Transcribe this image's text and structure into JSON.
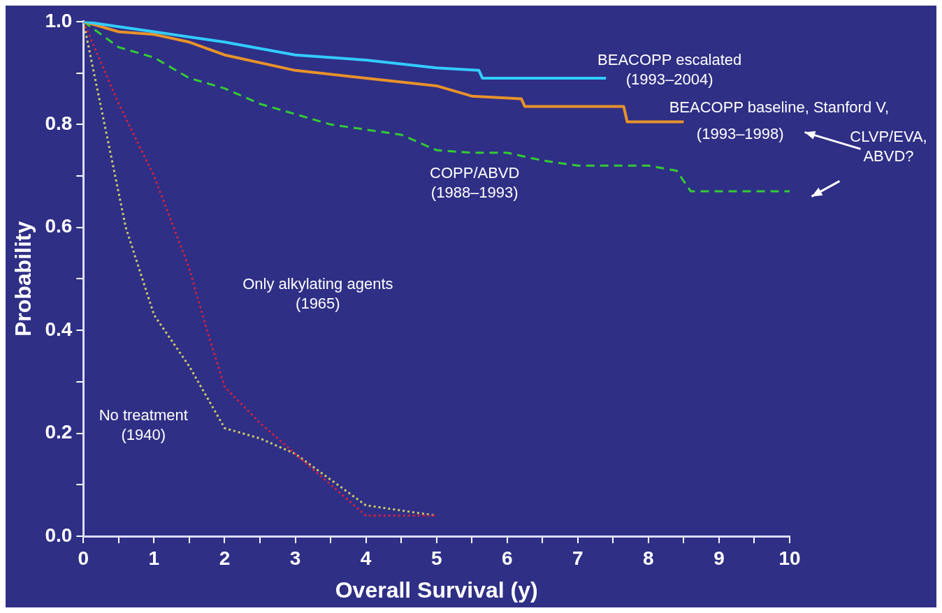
{
  "chart_data": {
    "type": "line",
    "xlabel": "Overall Survival (y)",
    "ylabel": "Probability",
    "xlim": [
      0,
      10
    ],
    "ylim": [
      0,
      1
    ],
    "xticks": [
      0,
      {
        "value": 0.5,
        "label": null
      },
      1,
      {
        "value": 1.5,
        "label": null
      },
      2,
      {
        "value": 2.5,
        "label": null
      },
      3,
      {
        "value": 3.5,
        "label": null
      },
      4,
      {
        "value": 4.5,
        "label": null
      },
      5,
      {
        "value": 5.5,
        "label": null
      },
      6,
      {
        "value": 6.5,
        "label": null
      },
      7,
      {
        "value": 7.5,
        "label": null
      },
      8,
      {
        "value": 8.5,
        "label": null
      },
      9,
      {
        "value": 9.5,
        "label": null
      },
      10
    ],
    "yticks": [
      {
        "value": 0,
        "label": "0.0"
      },
      {
        "value": 0.1,
        "label": null
      },
      {
        "value": 0.2,
        "label": "0.2"
      },
      {
        "value": 0.3,
        "label": null
      },
      {
        "value": 0.4,
        "label": "0.4"
      },
      {
        "value": 0.5,
        "label": null
      },
      {
        "value": 0.6,
        "label": "0.6"
      },
      {
        "value": 0.7,
        "label": null
      },
      {
        "value": 0.8,
        "label": "0.8"
      },
      {
        "value": 0.9,
        "label": null
      },
      {
        "value": 1,
        "label": "1.0"
      }
    ],
    "legend": false,
    "marker": "none",
    "series": [
      {
        "color": "#33ccff",
        "line_style": "solid",
        "x": [
          0,
          0.5,
          1,
          2,
          3,
          4,
          5,
          5.6,
          5.65,
          7.4
        ],
        "values": [
          1,
          0.99,
          0.98,
          0.96,
          0.935,
          0.925,
          0.91,
          0.905,
          0.89,
          0.89
        ]
      },
      {
        "color": "#e8922a",
        "line_style": "solid",
        "x": [
          0,
          0.5,
          1,
          1.5,
          2,
          3,
          4,
          5,
          5.5,
          6.2,
          6.25,
          7.65,
          7.7,
          8.5
        ],
        "values": [
          1,
          0.98,
          0.975,
          0.96,
          0.935,
          0.905,
          0.89,
          0.875,
          0.855,
          0.85,
          0.835,
          0.835,
          0.805,
          0.805
        ]
      },
      {
        "color": "#33cc33",
        "line_style": "dashed",
        "x": [
          0,
          0.5,
          1,
          1.5,
          2,
          2.5,
          3,
          3.5,
          4,
          4.5,
          5,
          5.5,
          6,
          6.5,
          7,
          8,
          8.4,
          8.6,
          10
        ],
        "values": [
          1,
          0.95,
          0.93,
          0.89,
          0.87,
          0.84,
          0.82,
          0.8,
          0.79,
          0.78,
          0.75,
          0.745,
          0.745,
          0.73,
          0.72,
          0.72,
          0.71,
          0.67,
          0.67
        ]
      },
      {
        "color": "#cc2244",
        "line_style": "dotted",
        "x": [
          0,
          0.5,
          1,
          1.5,
          1.75,
          2,
          2.5,
          3,
          3.5,
          4,
          4.5,
          5
        ],
        "values": [
          1,
          0.84,
          0.7,
          0.52,
          0.4,
          0.29,
          0.22,
          0.16,
          0.1,
          0.04,
          0.04,
          0.04
        ]
      },
      {
        "color": "#cccc66",
        "line_style": "dotted",
        "x": [
          0,
          0.3,
          0.6,
          1,
          1.5,
          2,
          2.5,
          3,
          3.5,
          4,
          4.5,
          5
        ],
        "values": [
          1,
          0.8,
          0.6,
          0.43,
          0.33,
          0.21,
          0.19,
          0.16,
          0.11,
          0.06,
          0.05,
          0.04
        ]
      }
    ],
    "annotations": [
      "BEACOPP escalated\n(1993–2004)",
      "BEACOPP baseline, Stanford V,",
      "(1993–1998)",
      "CLVP/EVA,\nABVD?",
      "COPP/ABVD\n(1988–1993)",
      "Only alkylating agents\n(1965)",
      "No treatment\n(1940)"
    ]
  }
}
